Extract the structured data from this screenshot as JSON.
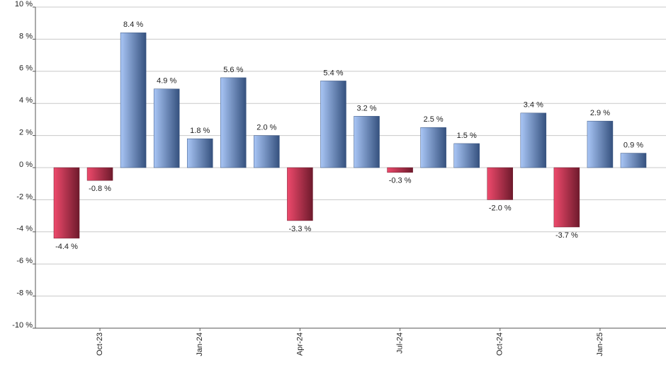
{
  "chart_data": {
    "type": "bar",
    "categories": [
      null,
      "Oct-23",
      null,
      null,
      "Jan-24",
      null,
      null,
      "Apr-24",
      null,
      null,
      "Jul-24",
      null,
      null,
      "Oct-24",
      null,
      null,
      "Jan-25",
      null
    ],
    "values": [
      -4.4,
      -0.8,
      8.4,
      4.9,
      1.8,
      5.6,
      2.0,
      -3.3,
      5.4,
      3.2,
      -0.3,
      2.5,
      1.5,
      -2.0,
      3.4,
      -3.7,
      2.9,
      0.9
    ],
    "value_labels": [
      "-4.4 %",
      "-0.8 %",
      "8.4 %",
      "4.9 %",
      "1.8 %",
      "5.6 %",
      "2.0 %",
      "-3.3 %",
      "5.4 %",
      "3.2 %",
      "-0.3 %",
      "2.5 %",
      "1.5 %",
      "-2.0 %",
      "3.4 %",
      "-3.7 %",
      "2.9 %",
      "0.9 %"
    ],
    "positive_color": [
      "#a9c6f6",
      "#35517e"
    ],
    "negative_color": [
      "#ee4a6c",
      "#6e1a2c"
    ],
    "ylim": [
      -10,
      10
    ],
    "yticks": [
      {
        "value": -10,
        "label": "-10 %"
      },
      {
        "value": -8,
        "label": "-8 %"
      },
      {
        "value": -6,
        "label": "-6 %"
      },
      {
        "value": -4,
        "label": "-4 %"
      },
      {
        "value": -2,
        "label": "-2 %"
      },
      {
        "value": 0,
        "label": "0 %"
      },
      {
        "value": 2,
        "label": "2 %"
      },
      {
        "value": 4,
        "label": "4 %"
      },
      {
        "value": 6,
        "label": "6 %"
      },
      {
        "value": 8,
        "label": "8 %"
      },
      {
        "value": 10,
        "label": "10 %"
      }
    ],
    "grid": true
  }
}
